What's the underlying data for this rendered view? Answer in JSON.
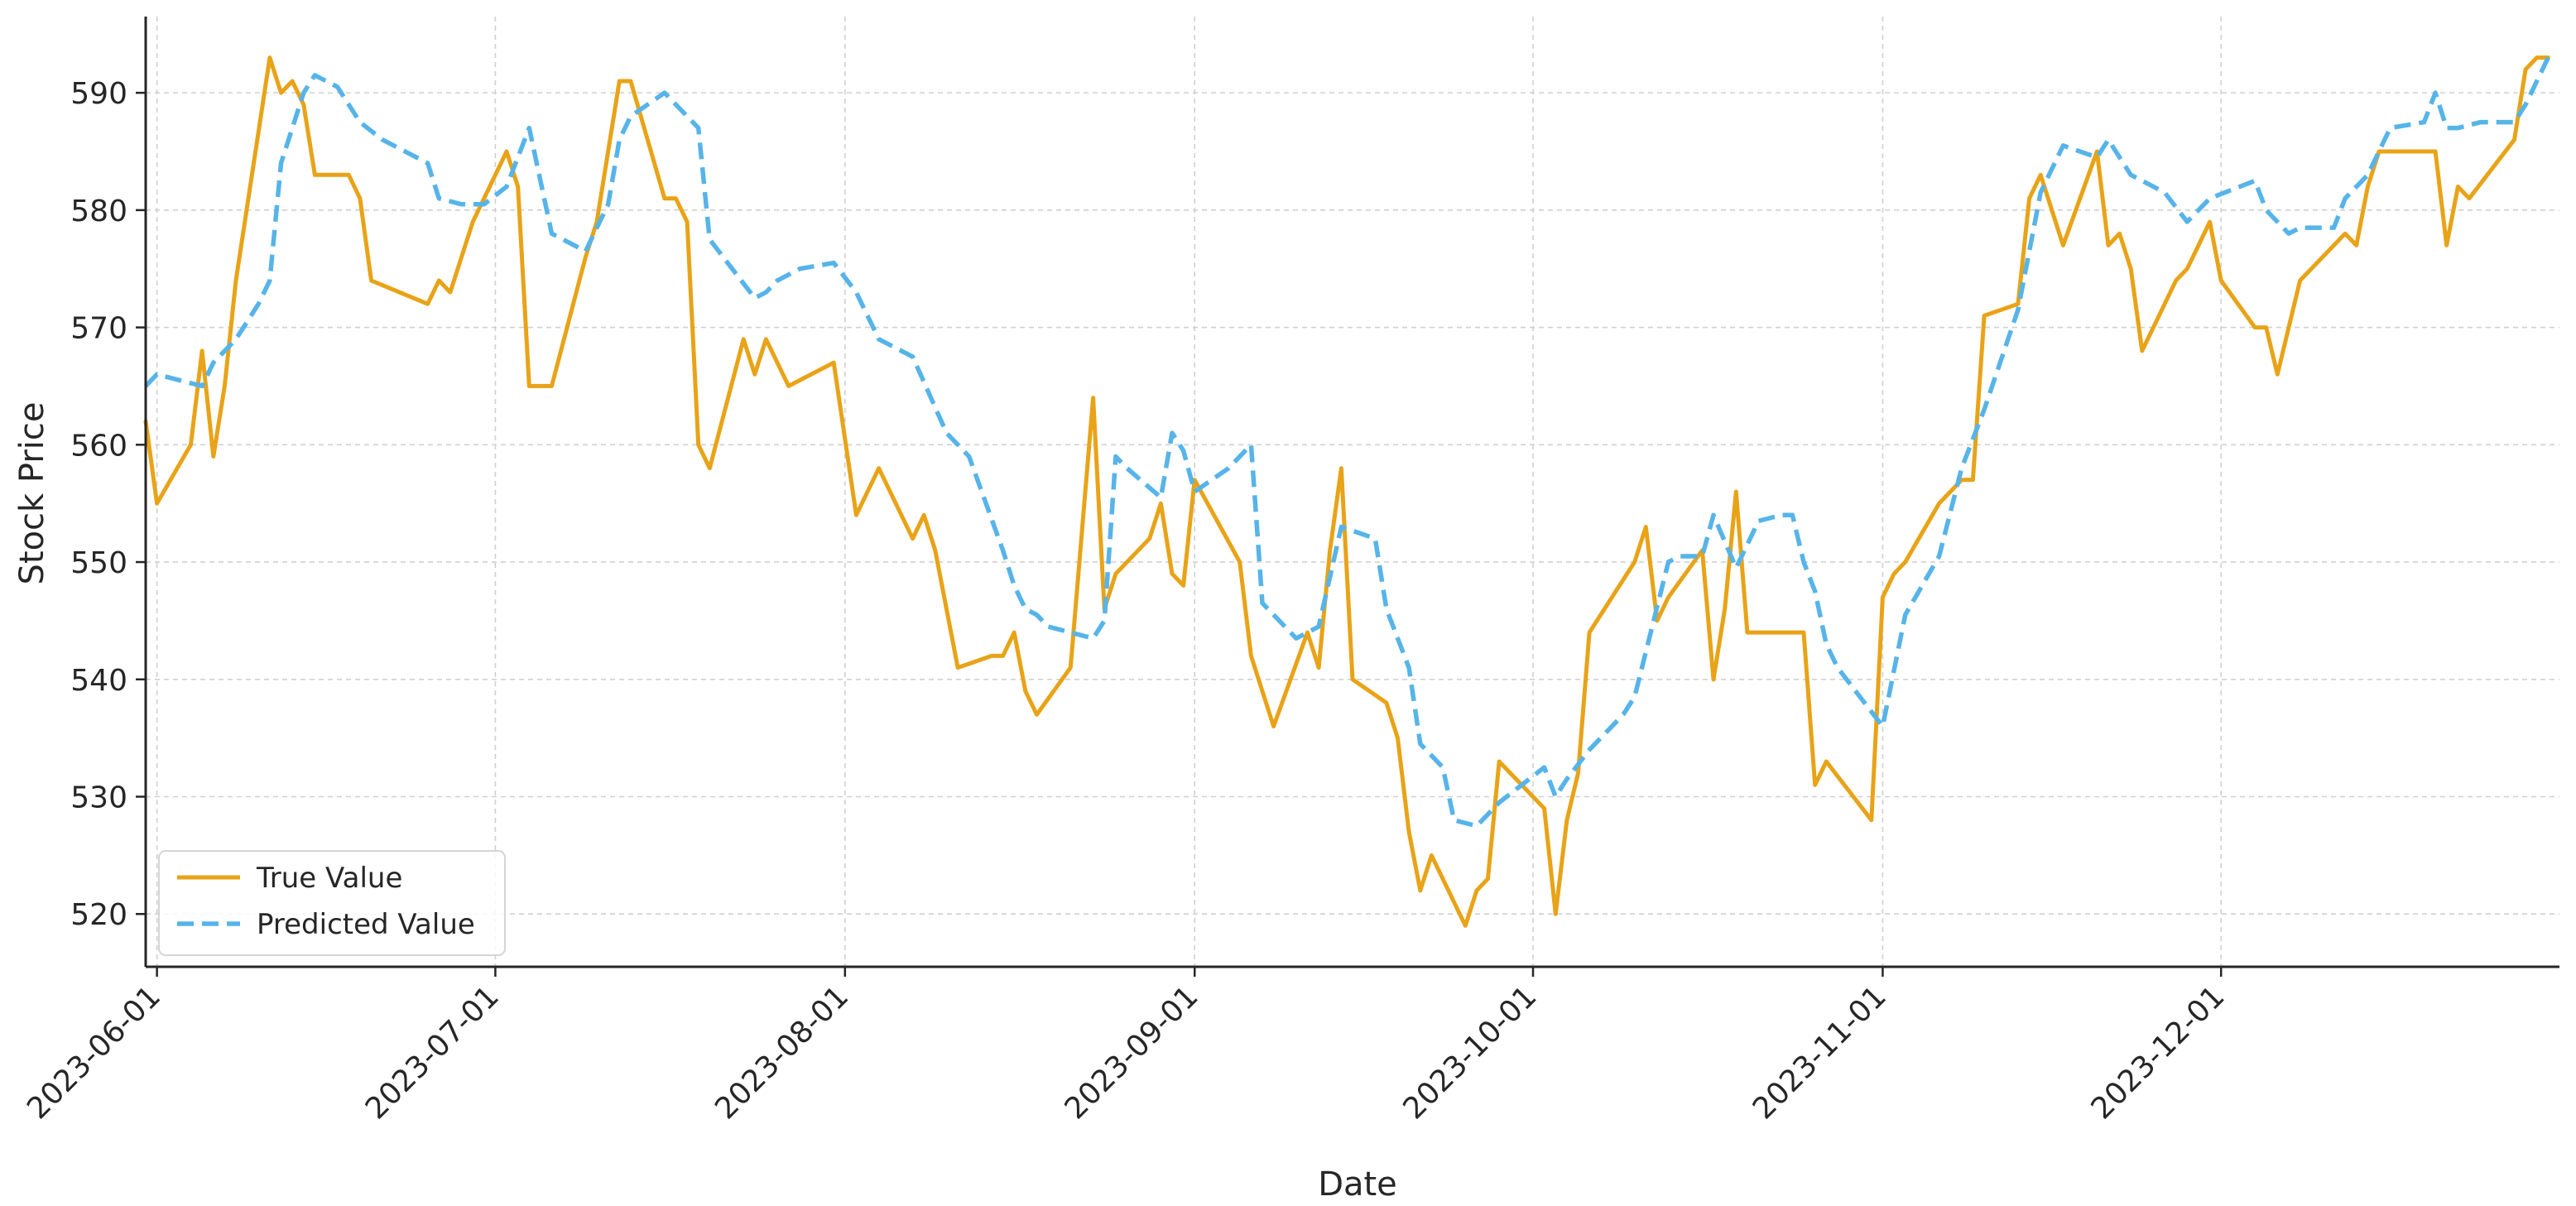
{
  "chart_data": {
    "type": "line",
    "title": "",
    "xlabel": "Date",
    "ylabel": "Stock Price",
    "x_range": [
      "2023-05-31",
      "2023-12-31"
    ],
    "ylim": [
      515.5,
      596.5
    ],
    "x_ticks": [
      "2023-06-01",
      "2023-07-01",
      "2023-08-01",
      "2023-09-01",
      "2023-10-01",
      "2023-11-01",
      "2023-12-01"
    ],
    "y_ticks": [
      520,
      530,
      540,
      550,
      560,
      570,
      580,
      590
    ],
    "grid": true,
    "legend_position": "lower-left",
    "series": [
      {
        "name": "True Value",
        "color": "#e8a317",
        "style": "solid",
        "points": [
          [
            "2023-05-31",
            562
          ],
          [
            "2023-06-01",
            555
          ],
          [
            "2023-06-04",
            560
          ],
          [
            "2023-06-05",
            568
          ],
          [
            "2023-06-06",
            559
          ],
          [
            "2023-06-07",
            565
          ],
          [
            "2023-06-08",
            574
          ],
          [
            "2023-06-11",
            593
          ],
          [
            "2023-06-12",
            590
          ],
          [
            "2023-06-13",
            591
          ],
          [
            "2023-06-14",
            589
          ],
          [
            "2023-06-15",
            583
          ],
          [
            "2023-06-18",
            583
          ],
          [
            "2023-06-19",
            581
          ],
          [
            "2023-06-20",
            574
          ],
          [
            "2023-06-25",
            572
          ],
          [
            "2023-06-26",
            574
          ],
          [
            "2023-06-27",
            573
          ],
          [
            "2023-06-29",
            579
          ],
          [
            "2023-07-02",
            585
          ],
          [
            "2023-07-03",
            582
          ],
          [
            "2023-07-04",
            565
          ],
          [
            "2023-07-06",
            565
          ],
          [
            "2023-07-09",
            576
          ],
          [
            "2023-07-10",
            579
          ],
          [
            "2023-07-12",
            591
          ],
          [
            "2023-07-13",
            591
          ],
          [
            "2023-07-16",
            581
          ],
          [
            "2023-07-17",
            581
          ],
          [
            "2023-07-18",
            579
          ],
          [
            "2023-07-19",
            560
          ],
          [
            "2023-07-20",
            558
          ],
          [
            "2023-07-23",
            569
          ],
          [
            "2023-07-24",
            566
          ],
          [
            "2023-07-25",
            569
          ],
          [
            "2023-07-27",
            565
          ],
          [
            "2023-07-31",
            567
          ],
          [
            "2023-08-02",
            554
          ],
          [
            "2023-08-04",
            558
          ],
          [
            "2023-08-07",
            552
          ],
          [
            "2023-08-08",
            554
          ],
          [
            "2023-08-09",
            551
          ],
          [
            "2023-08-11",
            541
          ],
          [
            "2023-08-14",
            542
          ],
          [
            "2023-08-15",
            542
          ],
          [
            "2023-08-16",
            544
          ],
          [
            "2023-08-17",
            539
          ],
          [
            "2023-08-18",
            537
          ],
          [
            "2023-08-21",
            541
          ],
          [
            "2023-08-23",
            564
          ],
          [
            "2023-08-24",
            546
          ],
          [
            "2023-08-25",
            549
          ],
          [
            "2023-08-28",
            552
          ],
          [
            "2023-08-29",
            555
          ],
          [
            "2023-08-30",
            549
          ],
          [
            "2023-08-31",
            548
          ],
          [
            "2023-09-01",
            557
          ],
          [
            "2023-09-05",
            550
          ],
          [
            "2023-09-06",
            542
          ],
          [
            "2023-09-08",
            536
          ],
          [
            "2023-09-11",
            544
          ],
          [
            "2023-09-12",
            541
          ],
          [
            "2023-09-13",
            551
          ],
          [
            "2023-09-14",
            558
          ],
          [
            "2023-09-15",
            540
          ],
          [
            "2023-09-18",
            538
          ],
          [
            "2023-09-19",
            535
          ],
          [
            "2023-09-20",
            527
          ],
          [
            "2023-09-21",
            522
          ],
          [
            "2023-09-22",
            525
          ],
          [
            "2023-09-25",
            519
          ],
          [
            "2023-09-26",
            522
          ],
          [
            "2023-09-27",
            523
          ],
          [
            "2023-09-28",
            533
          ],
          [
            "2023-10-02",
            529
          ],
          [
            "2023-10-03",
            520
          ],
          [
            "2023-10-04",
            528
          ],
          [
            "2023-10-05",
            532
          ],
          [
            "2023-10-06",
            544
          ],
          [
            "2023-10-10",
            550
          ],
          [
            "2023-10-11",
            553
          ],
          [
            "2023-10-12",
            545
          ],
          [
            "2023-10-13",
            547
          ],
          [
            "2023-10-16",
            551
          ],
          [
            "2023-10-17",
            540
          ],
          [
            "2023-10-18",
            546
          ],
          [
            "2023-10-19",
            556
          ],
          [
            "2023-10-20",
            544
          ],
          [
            "2023-10-25",
            544
          ],
          [
            "2023-10-26",
            531
          ],
          [
            "2023-10-27",
            533
          ],
          [
            "2023-10-31",
            528
          ],
          [
            "2023-11-01",
            547
          ],
          [
            "2023-11-02",
            549
          ],
          [
            "2023-11-03",
            550
          ],
          [
            "2023-11-06",
            555
          ],
          [
            "2023-11-07",
            556
          ],
          [
            "2023-11-08",
            557
          ],
          [
            "2023-11-09",
            557
          ],
          [
            "2023-11-10",
            571
          ],
          [
            "2023-11-13",
            572
          ],
          [
            "2023-11-14",
            581
          ],
          [
            "2023-11-15",
            583
          ],
          [
            "2023-11-17",
            577
          ],
          [
            "2023-11-20",
            585
          ],
          [
            "2023-11-21",
            577
          ],
          [
            "2023-11-22",
            578
          ],
          [
            "2023-11-23",
            575
          ],
          [
            "2023-11-24",
            568
          ],
          [
            "2023-11-27",
            574
          ],
          [
            "2023-11-28",
            575
          ],
          [
            "2023-11-29",
            577
          ],
          [
            "2023-11-30",
            579
          ],
          [
            "2023-12-01",
            574
          ],
          [
            "2023-12-04",
            570
          ],
          [
            "2023-12-05",
            570
          ],
          [
            "2023-12-06",
            566
          ],
          [
            "2023-12-08",
            574
          ],
          [
            "2023-12-12",
            578
          ],
          [
            "2023-12-13",
            577
          ],
          [
            "2023-12-14",
            582
          ],
          [
            "2023-12-15",
            585
          ],
          [
            "2023-12-20",
            585
          ],
          [
            "2023-12-21",
            577
          ],
          [
            "2023-12-22",
            582
          ],
          [
            "2023-12-23",
            581
          ],
          [
            "2023-12-27",
            586
          ],
          [
            "2023-12-28",
            592
          ],
          [
            "2023-12-29",
            593
          ],
          [
            "2023-12-30",
            593
          ]
        ]
      },
      {
        "name": "Predicted Value",
        "color": "#56b4e9",
        "style": "dashed",
        "points": [
          [
            "2023-05-31",
            565
          ],
          [
            "2023-06-01",
            566
          ],
          [
            "2023-06-05",
            565
          ],
          [
            "2023-06-06",
            567
          ],
          [
            "2023-06-08",
            569
          ],
          [
            "2023-06-10",
            572
          ],
          [
            "2023-06-11",
            574
          ],
          [
            "2023-06-12",
            584
          ],
          [
            "2023-06-14",
            590
          ],
          [
            "2023-06-15",
            591.5
          ],
          [
            "2023-06-17",
            590.5
          ],
          [
            "2023-06-19",
            587.5
          ],
          [
            "2023-06-21",
            586
          ],
          [
            "2023-06-25",
            584
          ],
          [
            "2023-06-26",
            581
          ],
          [
            "2023-06-28",
            580.5
          ],
          [
            "2023-06-30",
            580.5
          ],
          [
            "2023-07-02",
            582
          ],
          [
            "2023-07-04",
            587
          ],
          [
            "2023-07-06",
            578
          ],
          [
            "2023-07-09",
            576.5
          ],
          [
            "2023-07-11",
            580.5
          ],
          [
            "2023-07-12",
            586
          ],
          [
            "2023-07-13",
            588
          ],
          [
            "2023-07-16",
            590
          ],
          [
            "2023-07-18",
            588
          ],
          [
            "2023-07-19",
            587
          ],
          [
            "2023-07-20",
            577.5
          ],
          [
            "2023-07-24",
            572.5
          ],
          [
            "2023-07-25",
            573
          ],
          [
            "2023-07-26",
            574
          ],
          [
            "2023-07-28",
            575
          ],
          [
            "2023-07-31",
            575.5
          ],
          [
            "2023-08-02",
            573
          ],
          [
            "2023-08-04",
            569
          ],
          [
            "2023-08-06",
            568
          ],
          [
            "2023-08-07",
            567.5
          ],
          [
            "2023-08-10",
            561
          ],
          [
            "2023-08-12",
            559
          ],
          [
            "2023-08-15",
            551
          ],
          [
            "2023-08-16",
            548
          ],
          [
            "2023-08-17",
            546
          ],
          [
            "2023-08-18",
            545.5
          ],
          [
            "2023-08-19",
            544.5
          ],
          [
            "2023-08-23",
            543.5
          ],
          [
            "2023-08-24",
            545
          ],
          [
            "2023-08-25",
            559
          ],
          [
            "2023-08-26",
            558
          ],
          [
            "2023-08-29",
            555.5
          ],
          [
            "2023-08-30",
            561
          ],
          [
            "2023-08-31",
            559.5
          ],
          [
            "2023-09-01",
            556
          ],
          [
            "2023-09-04",
            558
          ],
          [
            "2023-09-06",
            560
          ],
          [
            "2023-09-07",
            546.5
          ],
          [
            "2023-09-10",
            543.5
          ],
          [
            "2023-09-12",
            544.5
          ],
          [
            "2023-09-14",
            553
          ],
          [
            "2023-09-17",
            552
          ],
          [
            "2023-09-18",
            546
          ],
          [
            "2023-09-20",
            541
          ],
          [
            "2023-09-21",
            534.5
          ],
          [
            "2023-09-23",
            532.5
          ],
          [
            "2023-09-24",
            528
          ],
          [
            "2023-09-26",
            527.5
          ],
          [
            "2023-09-27",
            528.5
          ],
          [
            "2023-09-28",
            529.5
          ],
          [
            "2023-10-02",
            532.5
          ],
          [
            "2023-10-03",
            530
          ],
          [
            "2023-10-04",
            531.5
          ],
          [
            "2023-10-06",
            534
          ],
          [
            "2023-10-09",
            537
          ],
          [
            "2023-10-10",
            538.5
          ],
          [
            "2023-10-13",
            550
          ],
          [
            "2023-10-14",
            550.5
          ],
          [
            "2023-10-16",
            550.5
          ],
          [
            "2023-10-17",
            554
          ],
          [
            "2023-10-19",
            549.5
          ],
          [
            "2023-10-21",
            553.5
          ],
          [
            "2023-10-23",
            554
          ],
          [
            "2023-10-24",
            554
          ],
          [
            "2023-10-25",
            550
          ],
          [
            "2023-10-26",
            547.5
          ],
          [
            "2023-10-27",
            543
          ],
          [
            "2023-10-28",
            541
          ],
          [
            "2023-11-01",
            536
          ],
          [
            "2023-11-03",
            545.5
          ],
          [
            "2023-11-06",
            550.5
          ],
          [
            "2023-11-08",
            558
          ],
          [
            "2023-11-10",
            563
          ],
          [
            "2023-11-13",
            571.5
          ],
          [
            "2023-11-15",
            581.5
          ],
          [
            "2023-11-16",
            583.5
          ],
          [
            "2023-11-17",
            585.5
          ],
          [
            "2023-11-20",
            584.5
          ],
          [
            "2023-11-21",
            586
          ],
          [
            "2023-11-23",
            583
          ],
          [
            "2023-11-26",
            581.5
          ],
          [
            "2023-11-28",
            579
          ],
          [
            "2023-11-30",
            581
          ],
          [
            "2023-12-04",
            582.5
          ],
          [
            "2023-12-05",
            580
          ],
          [
            "2023-12-07",
            578
          ],
          [
            "2023-12-08",
            578.5
          ],
          [
            "2023-12-11",
            578.5
          ],
          [
            "2023-12-12",
            581
          ],
          [
            "2023-12-14",
            583
          ],
          [
            "2023-12-16",
            587
          ],
          [
            "2023-12-19",
            587.5
          ],
          [
            "2023-12-20",
            590
          ],
          [
            "2023-12-21",
            587
          ],
          [
            "2023-12-22",
            587
          ],
          [
            "2023-12-24",
            587.5
          ],
          [
            "2023-12-27",
            587.5
          ],
          [
            "2023-12-28",
            589
          ],
          [
            "2023-12-30",
            593
          ]
        ]
      }
    ]
  }
}
